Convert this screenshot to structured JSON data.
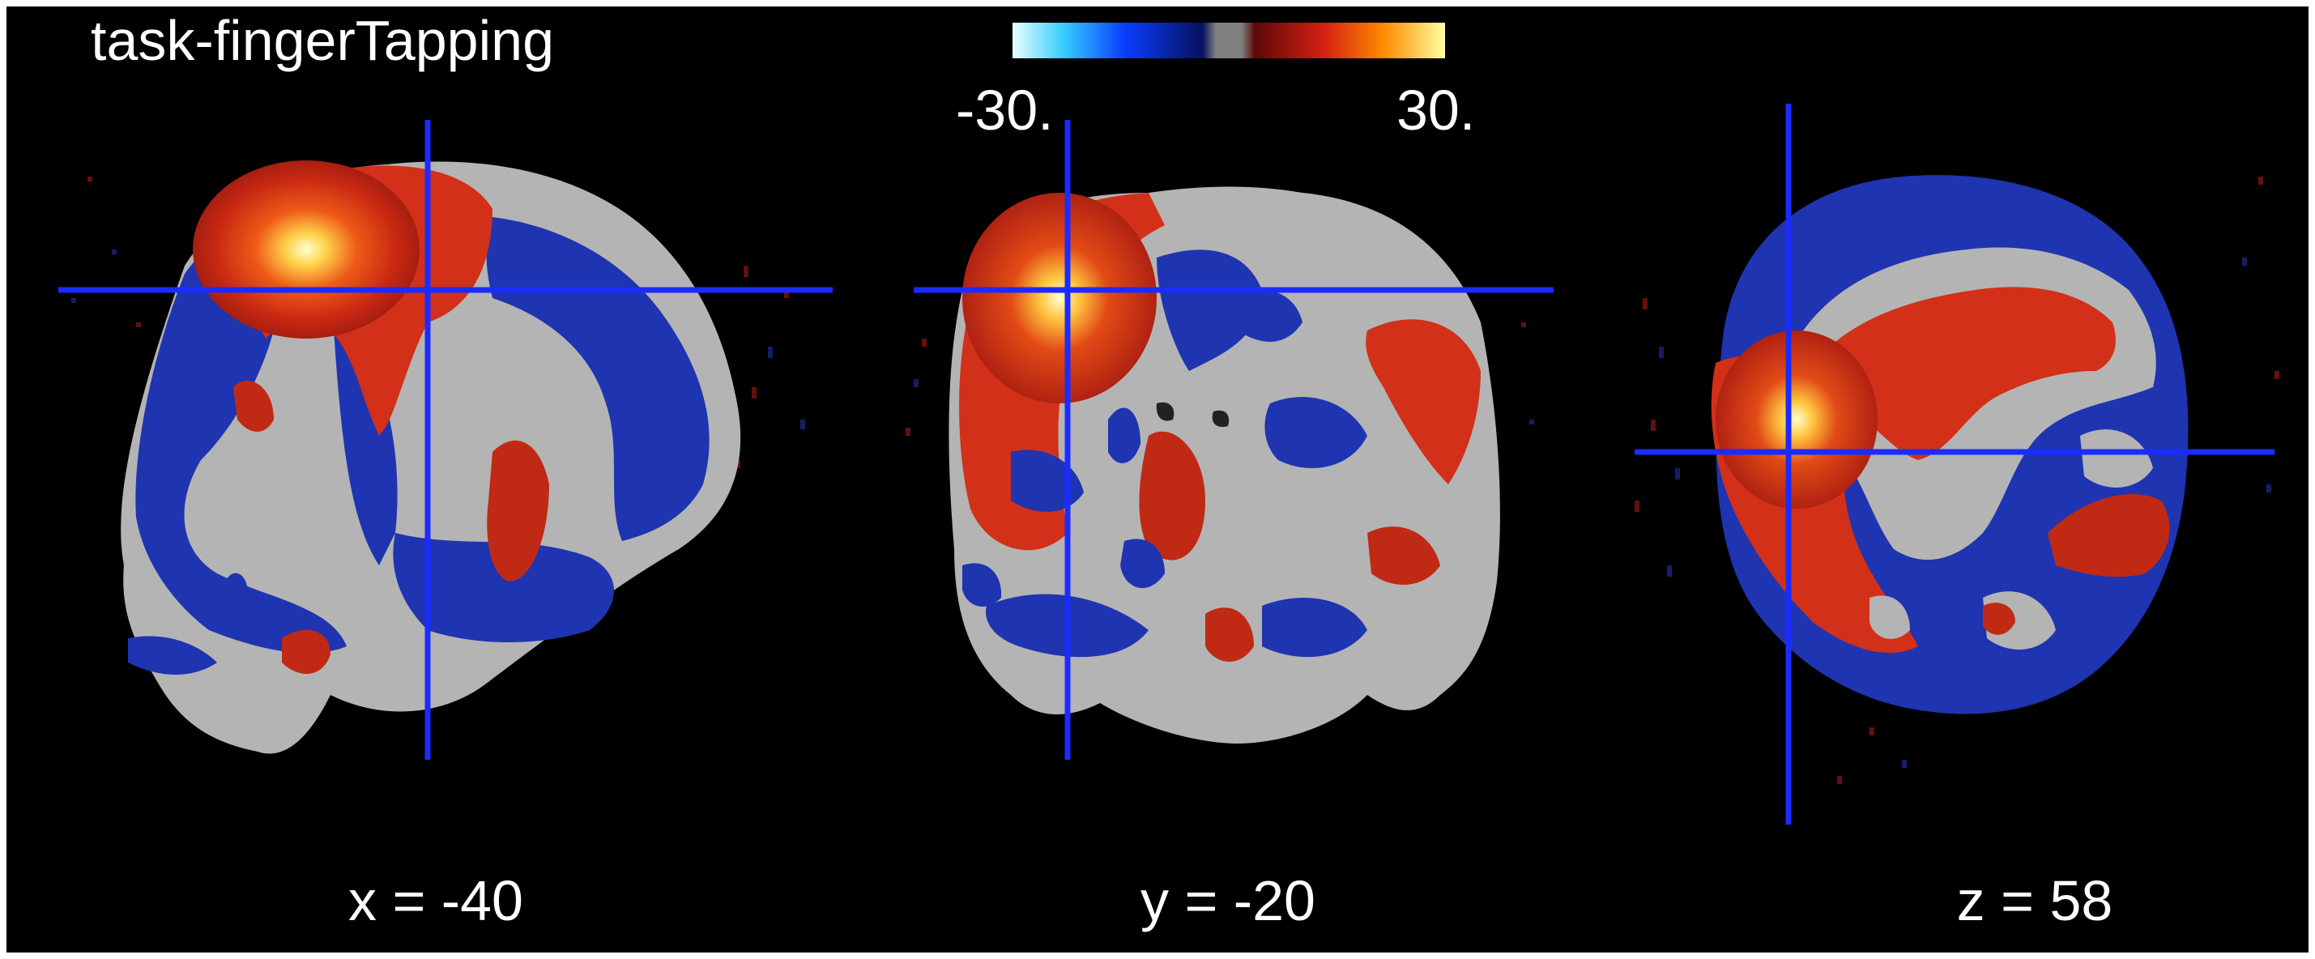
{
  "figure": {
    "title": "task-fingerTapping",
    "colorbar": {
      "min_label": "-30.",
      "max_label": "30.",
      "colors": [
        "#ccffff",
        "#33ccff",
        "#0033ff",
        "#0a1a7a",
        "#808080",
        "#7a1010",
        "#e02010",
        "#ff8a00",
        "#ffff80"
      ]
    },
    "slices": [
      {
        "label": "x = -40",
        "view": "sagittal"
      },
      {
        "label": "y = -20",
        "view": "coronal"
      },
      {
        "label": "z = 58",
        "view": "axial"
      }
    ],
    "crosshair_color": "#1a2cff",
    "background_color": "#000000",
    "activation_hot": "#e03a14",
    "activation_cold": "#1f34b0",
    "anatomy_color": "#b4b4b4"
  }
}
